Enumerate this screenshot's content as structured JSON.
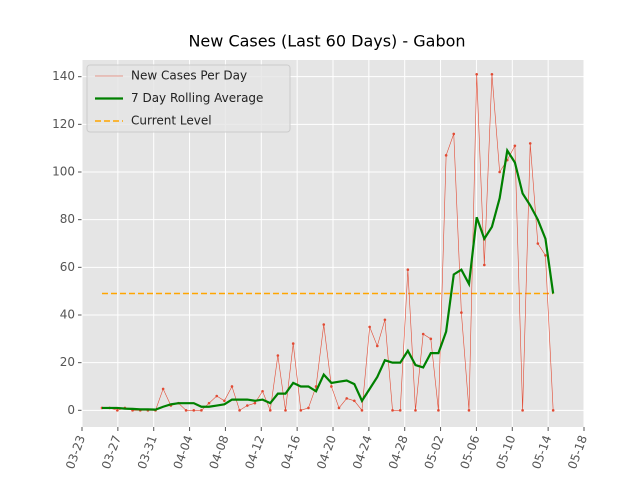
{
  "chart_data": {
    "type": "line",
    "title": "New Cases (Last 60 Days) - Gabon",
    "x": [
      2.23,
      3.08,
      3.94,
      4.79,
      5.64,
      6.5,
      7.35,
      8.2,
      9.05,
      9.91,
      10.76,
      11.61,
      12.47,
      13.32,
      14.17,
      15.03,
      15.88,
      16.73,
      17.58,
      18.44,
      19.29,
      20.14,
      21.0,
      21.85,
      22.7,
      23.56,
      24.41,
      25.26,
      26.11,
      26.97,
      27.82,
      28.67,
      29.53,
      30.38,
      31.23,
      32.09,
      32.94,
      33.79,
      34.64,
      35.5,
      36.35,
      37.2,
      38.06,
      38.91,
      39.76,
      40.62,
      41.47,
      42.32,
      43.17,
      44.03,
      44.88,
      45.73,
      46.59,
      47.44,
      48.29,
      49.15,
      50.0,
      50.85,
      51.7,
      52.56
    ],
    "series": [
      {
        "name": "New Cases Per Day",
        "color": "#e24a33",
        "linewidth": 0.6,
        "marker": true,
        "values": [
          1,
          1,
          0,
          1,
          0,
          0,
          0,
          0,
          9,
          2,
          3,
          0,
          0,
          0,
          3,
          6,
          4,
          10,
          0,
          2,
          3,
          8,
          0,
          23,
          0,
          28,
          0,
          1,
          10,
          36,
          10,
          1,
          5,
          4,
          0,
          35,
          27,
          38,
          0,
          0,
          59,
          0,
          32,
          30,
          0,
          107,
          116,
          41,
          0,
          141,
          61,
          141,
          100,
          105,
          111,
          0,
          112,
          70,
          65,
          0
        ]
      },
      {
        "name": "7 Day Rolling Average",
        "color": "green",
        "linewidth": 2.2,
        "marker": false,
        "values": [
          1,
          1,
          1,
          0.7,
          0.6,
          0.4,
          0.4,
          0.3,
          1.5,
          2.5,
          3,
          3,
          3,
          1.5,
          1.5,
          2,
          2.5,
          4.5,
          4.5,
          4.5,
          4,
          4.5,
          3,
          7,
          7,
          11.5,
          10,
          10,
          8,
          15,
          11.5,
          12,
          12.5,
          11,
          4,
          9,
          14,
          21,
          20,
          20,
          25,
          19,
          18,
          24,
          24,
          33,
          57,
          59,
          53,
          81,
          72,
          77,
          89,
          109,
          104,
          91,
          86,
          80,
          72,
          49
        ]
      }
    ],
    "hlines": [
      {
        "name": "Current Level",
        "color": "orange",
        "linestyle": "dashed",
        "y": 49
      }
    ],
    "xlim": [
      0,
      56
    ],
    "xticks": [
      {
        "value": 0,
        "label": "03-23"
      },
      {
        "value": 4,
        "label": "03-27"
      },
      {
        "value": 8,
        "label": "03-31"
      },
      {
        "value": 12,
        "label": "04-04"
      },
      {
        "value": 16,
        "label": "04-08"
      },
      {
        "value": 20,
        "label": "04-12"
      },
      {
        "value": 24,
        "label": "04-16"
      },
      {
        "value": 28,
        "label": "04-20"
      },
      {
        "value": 32,
        "label": "04-24"
      },
      {
        "value": 36,
        "label": "04-28"
      },
      {
        "value": 40,
        "label": "05-02"
      },
      {
        "value": 44,
        "label": "05-06"
      },
      {
        "value": 48,
        "label": "05-10"
      },
      {
        "value": 52,
        "label": "05-14"
      },
      {
        "value": 56,
        "label": "05-18"
      }
    ],
    "ylim": [
      -7,
      147
    ],
    "yticks": [
      0,
      20,
      40,
      60,
      80,
      100,
      120,
      140
    ],
    "grid": true,
    "legend": "upper left"
  }
}
